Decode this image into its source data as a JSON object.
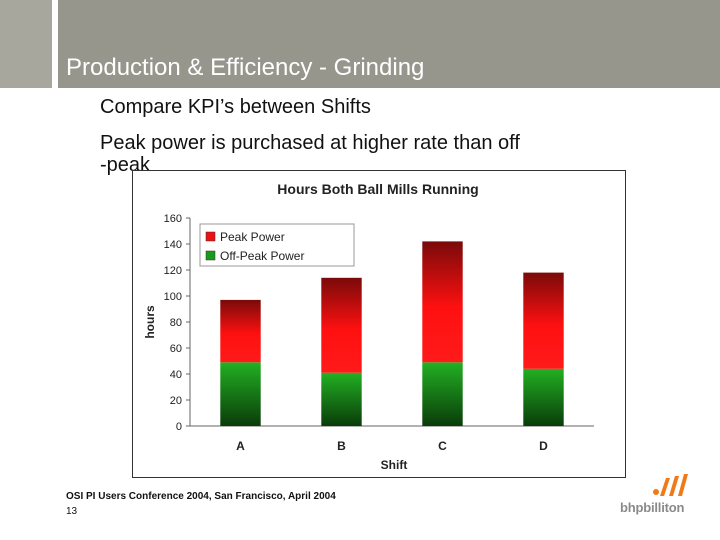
{
  "slide": {
    "title": "Production & Efficiency - Grinding",
    "bullets": [
      "Compare KPI’s between Shifts",
      "Peak power is purchased at higher rate than off",
      "-peak"
    ],
    "footer": "OSI PI Users Conference 2004, San Francisco, April 2004",
    "page_number": "13",
    "logo_text": "bhpbilliton"
  },
  "chart_data": {
    "type": "bar",
    "stacked": true,
    "title": "Hours Both Ball Mills Running",
    "xlabel": "Shift",
    "ylabel": "hours",
    "categories": [
      "A",
      "B",
      "C",
      "D"
    ],
    "series": [
      {
        "name": "Off-Peak Power",
        "color": "#1a9a1a",
        "values": [
          49,
          41,
          49,
          44
        ]
      },
      {
        "name": "Peak Power",
        "color": "#ee1111",
        "values": [
          48,
          73,
          93,
          74
        ]
      }
    ],
    "legend_order": [
      "Peak Power",
      "Off-Peak Power"
    ],
    "ylim": [
      0,
      160
    ],
    "yticks": [
      0,
      20,
      40,
      60,
      80,
      100,
      120,
      140,
      160
    ],
    "grid": false,
    "legend_position": "top-left"
  }
}
